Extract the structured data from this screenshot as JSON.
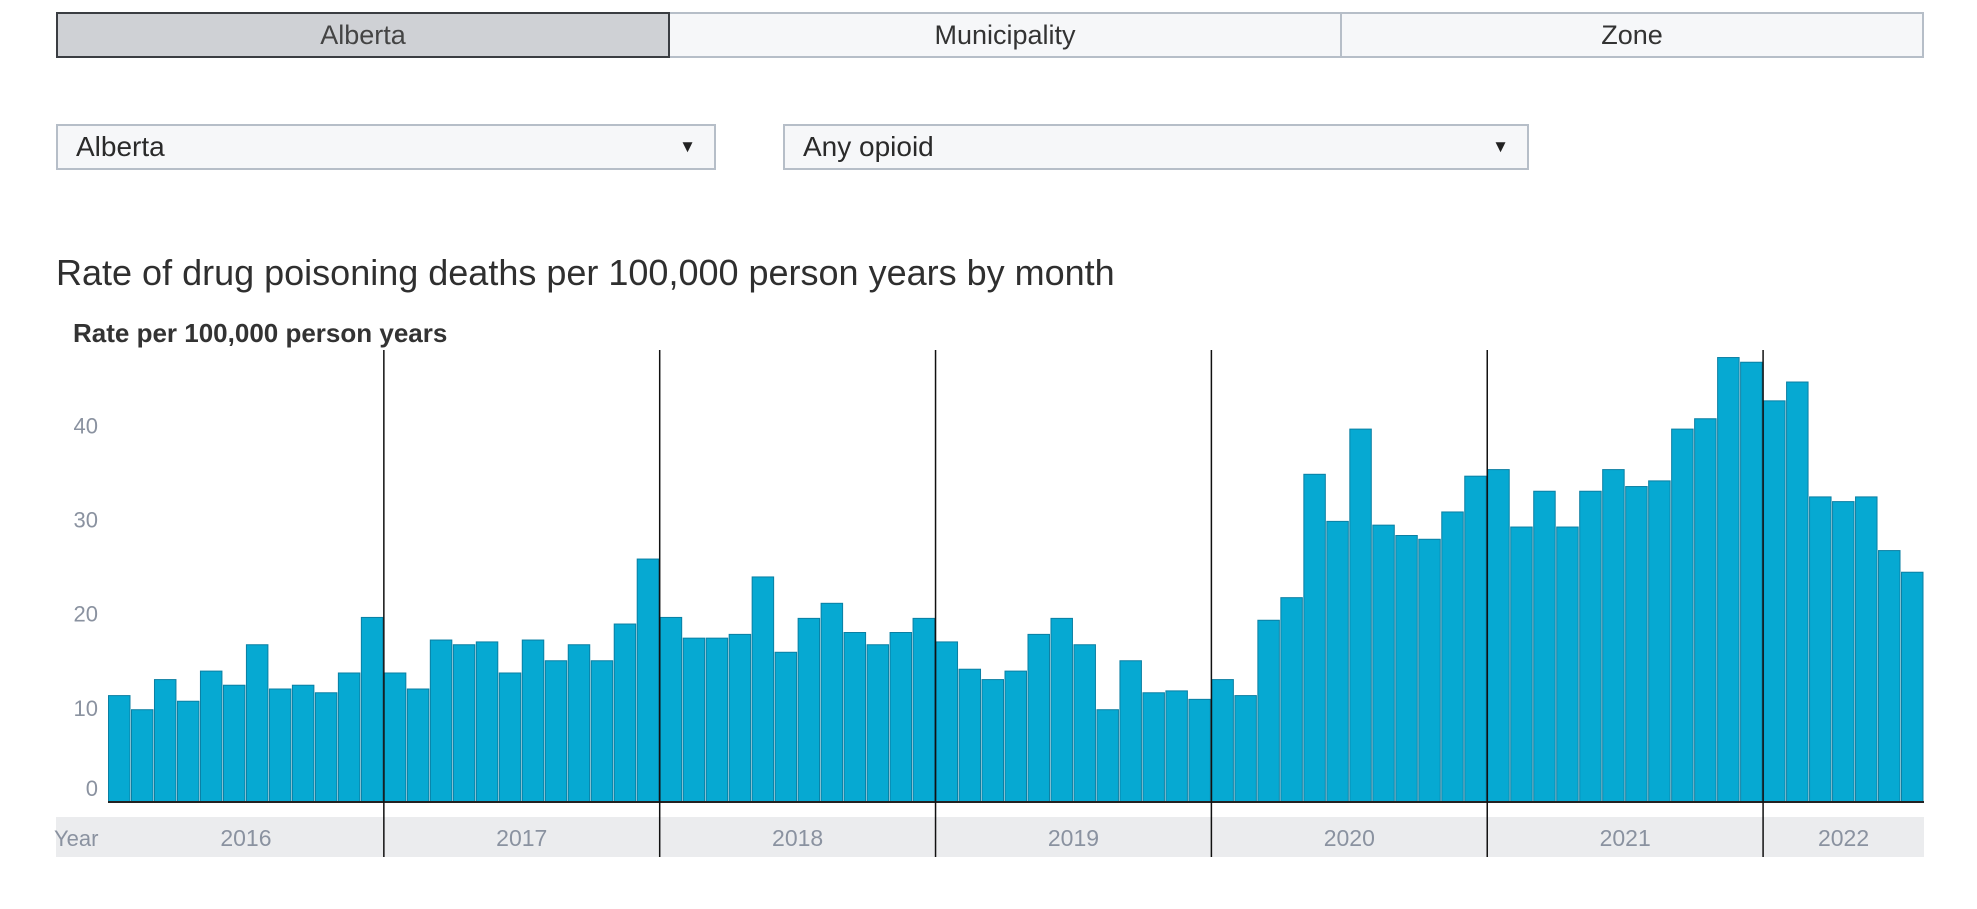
{
  "tabs": [
    "Alberta",
    "Municipality",
    "Zone"
  ],
  "active_tab": 0,
  "filters": {
    "region": {
      "value": "Alberta"
    },
    "substance": {
      "value": "Any opioid"
    }
  },
  "colors": {
    "bar": "#06a9d2",
    "bar_stroke": "#0a7fa3",
    "axis_band": "#ebecee",
    "tick_text": "#8a92a0"
  },
  "chart_data": {
    "type": "bar",
    "title": "Rate of drug poisoning deaths per 100,000 person years by month",
    "ylabel": "Rate per 100,000 person years",
    "xlabel": "Year",
    "y_ticks": [
      0,
      10,
      20,
      30,
      40
    ],
    "ylim": [
      0,
      48
    ],
    "years": [
      "2016",
      "2017",
      "2018",
      "2019",
      "2020",
      "2021",
      "2022"
    ],
    "months_per_year": [
      12,
      12,
      12,
      12,
      12,
      12,
      7
    ],
    "values": [
      11.3,
      9.8,
      13.0,
      10.7,
      13.9,
      12.4,
      16.7,
      12.0,
      12.4,
      11.6,
      13.7,
      19.6,
      13.7,
      12.0,
      17.2,
      16.7,
      17.0,
      13.7,
      17.2,
      15.0,
      16.7,
      15.0,
      18.9,
      25.8,
      19.6,
      17.4,
      17.4,
      17.8,
      23.9,
      15.9,
      19.5,
      21.1,
      18.0,
      16.7,
      18.0,
      19.5,
      17.0,
      14.1,
      13.0,
      13.9,
      17.8,
      19.5,
      16.7,
      9.8,
      15.0,
      11.6,
      11.8,
      10.9,
      13.0,
      11.3,
      19.3,
      21.7,
      34.8,
      29.8,
      39.6,
      29.4,
      28.3,
      27.9,
      30.8,
      34.6,
      35.3,
      29.2,
      33.0,
      29.2,
      33.0,
      35.3,
      33.5,
      34.1,
      39.6,
      40.7,
      47.2,
      46.7,
      42.6,
      44.6,
      32.4,
      31.9,
      32.4,
      26.7,
      24.4
    ]
  }
}
